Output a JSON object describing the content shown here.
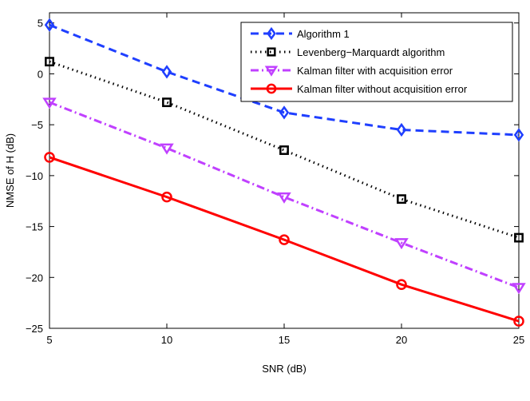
{
  "chart_data": {
    "type": "line",
    "title": "",
    "xlabel": "SNR (dB)",
    "ylabel": "NMSE of H (dB)",
    "xlim": [
      5,
      25
    ],
    "ylim": [
      -25,
      6
    ],
    "xticks": [
      5,
      10,
      15,
      20,
      25
    ],
    "yticks": [
      5,
      0,
      -5,
      -10,
      -15,
      -20,
      -25
    ],
    "x": [
      5,
      10,
      15,
      20,
      25
    ],
    "grid": false,
    "legend_position": "top-right",
    "series": [
      {
        "name": "Algorithm 1",
        "color": "#1f3fff",
        "line": "dashed",
        "marker": "diamond",
        "values": [
          4.8,
          0.2,
          -3.8,
          -5.5,
          -6.0
        ]
      },
      {
        "name": "Levenberg−Marquardt algorithm",
        "color": "#000000",
        "line": "dotted",
        "marker": "square",
        "values": [
          1.2,
          -2.8,
          -7.5,
          -12.3,
          -16.1
        ]
      },
      {
        "name": "Kalman filter with  acquisition error",
        "color": "#c040ff",
        "line": "dashdot",
        "marker": "triangle-down",
        "values": [
          -2.8,
          -7.3,
          -12.1,
          -16.6,
          -21.0
        ]
      },
      {
        "name": "Kalman filter without acquisition error",
        "color": "#ff0000",
        "line": "solid",
        "marker": "circle",
        "values": [
          -8.2,
          -12.1,
          -16.3,
          -20.7,
          -24.3
        ]
      }
    ]
  }
}
